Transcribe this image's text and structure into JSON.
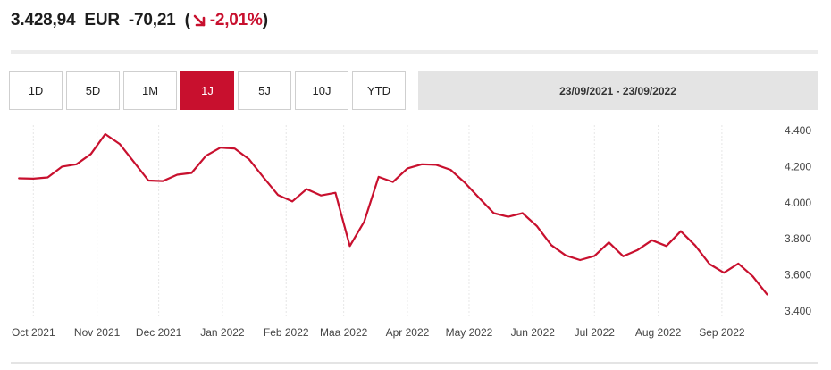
{
  "quote": {
    "price": "3.428,94",
    "currency": "EUR",
    "change": "-70,21",
    "open_paren": "(",
    "change_pct": "-2,01%",
    "close_paren": ")",
    "change_color": "#c8102e",
    "arrow_icon": "arrow-down-right-icon"
  },
  "ranges": {
    "buttons": [
      "1D",
      "5D",
      "1M",
      "1J",
      "5J",
      "10J",
      "YTD"
    ],
    "active": "1J",
    "date_range": "23/09/2021 - 23/09/2022"
  },
  "colors": {
    "accent": "#c8102e",
    "date_bar": "#e4e4e4"
  },
  "chart_data": {
    "type": "line",
    "title": "",
    "xlabel": "",
    "ylabel": "",
    "ylim": [
      3400,
      4400
    ],
    "y_ticks": [
      3400,
      3600,
      3800,
      4000,
      4200,
      4400
    ],
    "y_tick_labels": [
      "3.400",
      "3.600",
      "3.800",
      "4.000",
      "4.200",
      "4.400"
    ],
    "y_axis_position": "right",
    "grid": "vertical dotted",
    "legend": "none",
    "x_tick_dates": [
      "2021-10-01",
      "2021-11-01",
      "2021-12-01",
      "2022-01-01",
      "2022-02-01",
      "2022-03-01",
      "2022-04-01",
      "2022-05-01",
      "2022-06-01",
      "2022-07-01",
      "2022-08-01",
      "2022-09-01"
    ],
    "x_tick_labels": [
      "Oct 2021",
      "Nov 2021",
      "Dec 2021",
      "Jan 2022",
      "Feb 2022",
      "Maa 2022",
      "Apr 2022",
      "May 2022",
      "Jun 2022",
      "Jul 2022",
      "Aug 2022",
      "Sep 2022"
    ],
    "series": [
      {
        "color": "#c8102e",
        "x": [
          "2021-09-24",
          "2021-10-01",
          "2021-10-08",
          "2021-10-15",
          "2021-10-22",
          "2021-10-29",
          "2021-11-05",
          "2021-11-12",
          "2021-11-19",
          "2021-11-26",
          "2021-12-03",
          "2021-12-10",
          "2021-12-17",
          "2021-12-24",
          "2021-12-31",
          "2022-01-07",
          "2022-01-14",
          "2022-01-21",
          "2022-01-28",
          "2022-02-04",
          "2022-02-11",
          "2022-02-18",
          "2022-02-25",
          "2022-03-04",
          "2022-03-11",
          "2022-03-18",
          "2022-03-25",
          "2022-04-01",
          "2022-04-08",
          "2022-04-15",
          "2022-04-22",
          "2022-04-29",
          "2022-05-06",
          "2022-05-13",
          "2022-05-20",
          "2022-05-27",
          "2022-06-03",
          "2022-06-10",
          "2022-06-17",
          "2022-06-24",
          "2022-07-01",
          "2022-07-08",
          "2022-07-15",
          "2022-07-22",
          "2022-07-29",
          "2022-08-05",
          "2022-08-12",
          "2022-08-19",
          "2022-08-26",
          "2022-09-02",
          "2022-09-09",
          "2022-09-16",
          "2022-09-23"
        ],
        "y": [
          4135,
          4133,
          4140,
          4200,
          4213,
          4270,
          4380,
          4325,
          4225,
          4123,
          4120,
          4155,
          4165,
          4260,
          4305,
          4300,
          4240,
          4140,
          4043,
          4007,
          4075,
          4040,
          4055,
          3760,
          3895,
          4143,
          4115,
          4190,
          4213,
          4210,
          4182,
          4110,
          4025,
          3942,
          3922,
          3942,
          3870,
          3765,
          3708,
          3682,
          3705,
          3780,
          3703,
          3738,
          3792,
          3760,
          3842,
          3763,
          3660,
          3612,
          3663,
          3592,
          3492
        ]
      }
    ]
  }
}
